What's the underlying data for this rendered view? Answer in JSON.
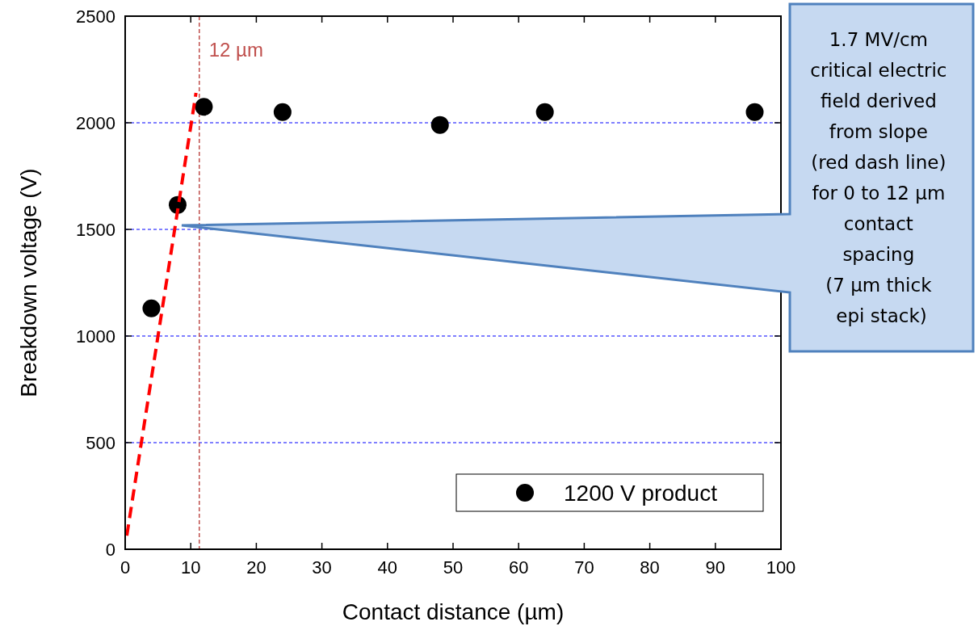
{
  "chart_data": {
    "type": "scatter",
    "xlabel": "Contact distance (µm)",
    "ylabel": "Breakdown voltage (V)",
    "xlim": [
      0,
      100
    ],
    "xticks": [
      0,
      10,
      20,
      30,
      40,
      50,
      60,
      70,
      80,
      90,
      100
    ],
    "ylim": [
      0,
      2500
    ],
    "yticks": [
      0,
      500,
      1000,
      1500,
      2000,
      2500
    ],
    "grid": "y",
    "legend": "bottom right",
    "marker": "circle",
    "series": [
      {
        "name": "1200 V product",
        "color": "#000000",
        "x": [
          4,
          8,
          12,
          24,
          48,
          64,
          96
        ],
        "values": [
          1130,
          1615,
          2075,
          2050,
          1990,
          2050,
          2050
        ]
      },
      {
        "type": "line",
        "color": "#ff0000",
        "line_style": "dashed",
        "marker": "none",
        "x": [
          0.25,
          10.8
        ],
        "values": [
          64,
          2140
        ]
      }
    ],
    "ref_lines": [
      {
        "axis": "x",
        "value": 11.3,
        "label": "12 µm",
        "color": "#c0504d",
        "line_style": "dashed"
      }
    ],
    "annotations": [
      "1.7 MV/cm\ncritical electric\nfield derived\nfrom slope\n(red dash line)\nfor 0 to 12 µm\ncontact\nspacing\n(7 µm thick\nepi stack)"
    ]
  }
}
